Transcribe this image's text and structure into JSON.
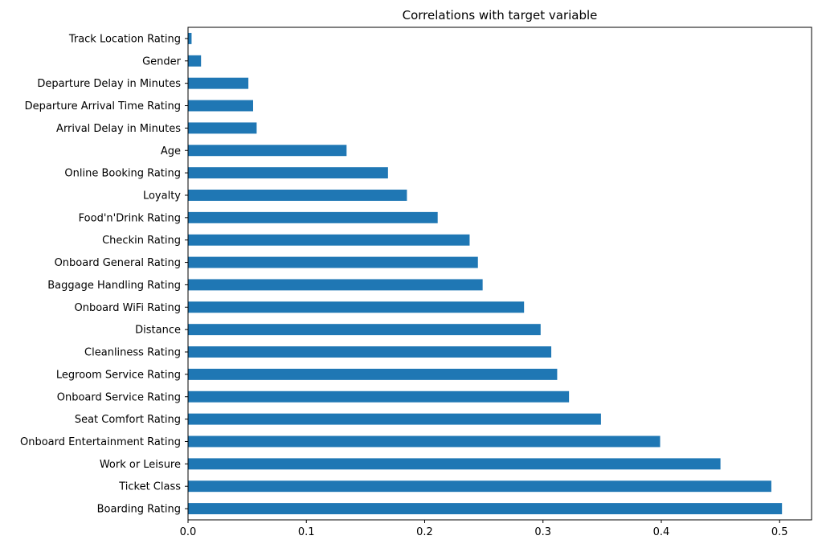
{
  "colors": {
    "bar": "#1f77b4",
    "axis": "#000000",
    "background": "#ffffff"
  },
  "chart_data": {
    "type": "bar",
    "orientation": "horizontal",
    "title": "Correlations with target variable",
    "xlabel": "",
    "ylabel": "",
    "xlim": [
      0,
      0.527
    ],
    "xticks": [
      0,
      0.1,
      0.2,
      0.3,
      0.4,
      0.5
    ],
    "xtick_labels": [
      "0.0",
      "0.1",
      "0.2",
      "0.3",
      "0.4",
      "0.5"
    ],
    "grid": false,
    "legend": "none",
    "categories": [
      "Track Location Rating",
      "Gender",
      "Departure Delay in Minutes",
      "Departure Arrival Time Rating",
      "Arrival Delay in Minutes",
      "Age",
      "Online Booking Rating",
      "Loyalty",
      "Food'n'Drink Rating",
      "Checkin Rating",
      "Onboard General Rating",
      "Baggage Handling Rating",
      "Onboard WiFi Rating",
      "Distance",
      "Cleanliness Rating",
      "Legroom Service Rating",
      "Onboard Service Rating",
      "Seat Comfort Rating",
      "Onboard Entertainment Rating",
      "Work or Leisure",
      "Ticket Class",
      "Boarding Rating"
    ],
    "values": [
      0.003,
      0.011,
      0.051,
      0.055,
      0.058,
      0.134,
      0.169,
      0.185,
      0.211,
      0.238,
      0.245,
      0.249,
      0.284,
      0.298,
      0.307,
      0.312,
      0.322,
      0.349,
      0.399,
      0.45,
      0.493,
      0.502
    ]
  }
}
